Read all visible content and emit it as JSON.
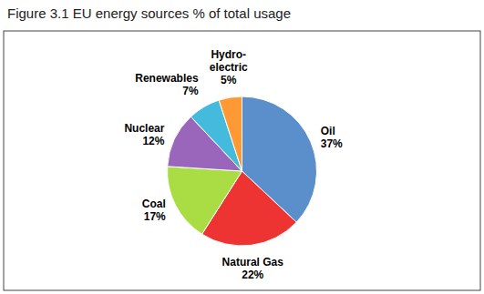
{
  "chart_data": {
    "type": "pie",
    "title": "Figure 3.1 EU energy sources % of total usage",
    "categories": [
      "Oil",
      "Natural Gas",
      "Coal",
      "Nuclear",
      "Renewables",
      "Hydro-\nelectric"
    ],
    "values": [
      37,
      22,
      17,
      12,
      7,
      5
    ],
    "value_labels": [
      "37%",
      "22%",
      "17%",
      "12%",
      "7%",
      "5%"
    ],
    "colors": [
      "#5B8FCC",
      "#EE3333",
      "#AADD44",
      "#9966BB",
      "#44BBDD",
      "#FF9933"
    ],
    "data_labels": true
  }
}
